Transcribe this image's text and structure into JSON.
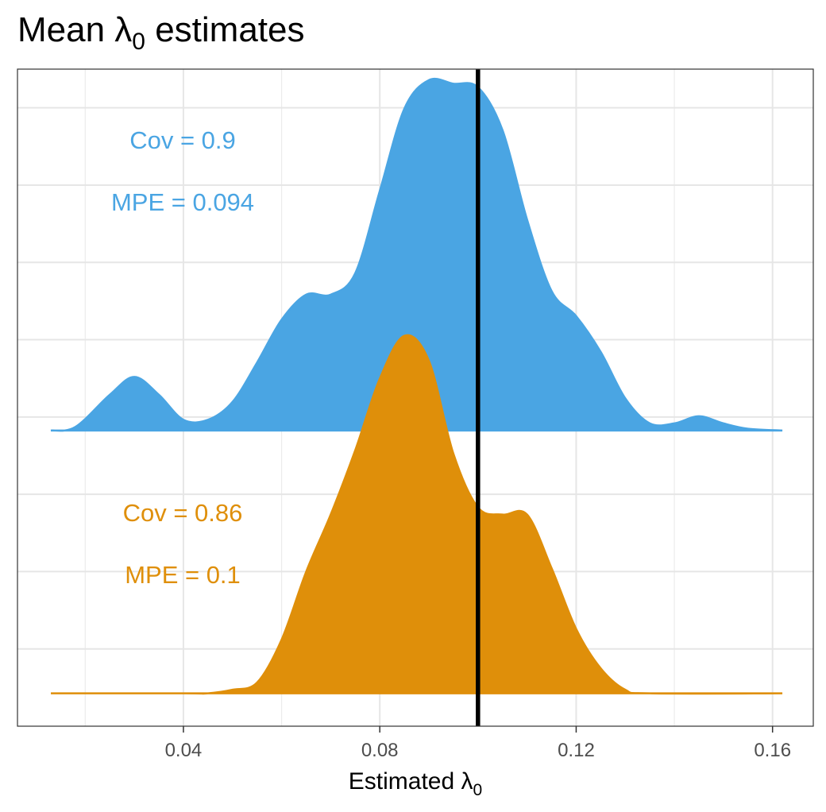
{
  "chart_data": {
    "type": "area",
    "title": {
      "text": "Mean λ",
      "subscript": "0",
      "suffix": " estimates"
    },
    "xlabel": {
      "text": "Estimated λ",
      "subscript": "0"
    },
    "ylabel": "",
    "xlim": [
      0.0062,
      0.1683
    ],
    "xticks": [
      0.04,
      0.08,
      0.12,
      0.16
    ],
    "xtick_labels": [
      "0.04",
      "0.08",
      "0.12",
      "0.16"
    ],
    "grid": true,
    "reference_line": {
      "x": 0.1,
      "color": "#000000"
    },
    "series": [
      {
        "color": "#4aa5e3",
        "baseline_fraction": 0.45,
        "density": [
          [
            0.013,
            0.0
          ],
          [
            0.018,
            0.01
          ],
          [
            0.025,
            0.1
          ],
          [
            0.03,
            0.15
          ],
          [
            0.035,
            0.1
          ],
          [
            0.04,
            0.03
          ],
          [
            0.045,
            0.03
          ],
          [
            0.05,
            0.08
          ],
          [
            0.055,
            0.19
          ],
          [
            0.06,
            0.31
          ],
          [
            0.065,
            0.38
          ],
          [
            0.07,
            0.38
          ],
          [
            0.075,
            0.44
          ],
          [
            0.08,
            0.67
          ],
          [
            0.085,
            0.9
          ],
          [
            0.09,
            0.98
          ],
          [
            0.095,
            0.97
          ],
          [
            0.1,
            0.96
          ],
          [
            0.105,
            0.84
          ],
          [
            0.11,
            0.59
          ],
          [
            0.115,
            0.39
          ],
          [
            0.12,
            0.32
          ],
          [
            0.125,
            0.22
          ],
          [
            0.13,
            0.09
          ],
          [
            0.135,
            0.02
          ],
          [
            0.14,
            0.02
          ],
          [
            0.145,
            0.04
          ],
          [
            0.15,
            0.02
          ],
          [
            0.155,
            0.005
          ],
          [
            0.162,
            0.0
          ]
        ],
        "annotations": [
          "Cov = 0.9",
          "MPE = 0.094"
        ]
      },
      {
        "color": "#df8f0a",
        "baseline_fraction": 0.05,
        "density": [
          [
            0.013,
            0.0
          ],
          [
            0.04,
            0.0
          ],
          [
            0.045,
            0.0
          ],
          [
            0.05,
            0.01
          ],
          [
            0.055,
            0.03
          ],
          [
            0.06,
            0.15
          ],
          [
            0.065,
            0.34
          ],
          [
            0.07,
            0.5
          ],
          [
            0.075,
            0.68
          ],
          [
            0.08,
            0.88
          ],
          [
            0.085,
            1.0
          ],
          [
            0.09,
            0.93
          ],
          [
            0.095,
            0.67
          ],
          [
            0.1,
            0.52
          ],
          [
            0.105,
            0.5
          ],
          [
            0.11,
            0.5
          ],
          [
            0.115,
            0.35
          ],
          [
            0.12,
            0.18
          ],
          [
            0.125,
            0.07
          ],
          [
            0.13,
            0.01
          ],
          [
            0.135,
            0.0
          ],
          [
            0.162,
            0.0
          ]
        ],
        "annotations": [
          "Cov = 0.86",
          "MPE = 0.1"
        ]
      }
    ]
  }
}
